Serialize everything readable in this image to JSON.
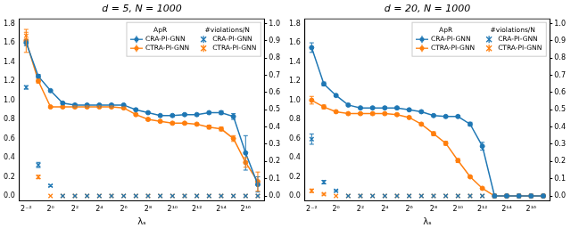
{
  "chart_data": [
    {
      "type": "line",
      "title": "d = 5, N = 1000",
      "x_label": "λₛ",
      "x": [
        0.25,
        0.5,
        1,
        2,
        4,
        8,
        16,
        32,
        64,
        128,
        256,
        512,
        1024,
        2048,
        4096,
        8192,
        16384,
        32768,
        65536,
        131072
      ],
      "log": "x",
      "grid": false,
      "legend": "upper right",
      "legend_titles": [
        "ApR",
        "#violations/N"
      ],
      "xlim": [
        0.17,
        190000
      ],
      "xticks": [
        {
          "value": 0.25,
          "label": "2⁻²"
        },
        {
          "value": 1,
          "label": "2⁰"
        },
        {
          "value": 4,
          "label": "2²"
        },
        {
          "value": 16,
          "label": "2⁴"
        },
        {
          "value": 64,
          "label": "2⁶"
        },
        {
          "value": 256,
          "label": "2⁸"
        },
        {
          "value": 1024,
          "label": "2¹⁰"
        },
        {
          "value": 4096,
          "label": "2¹²"
        },
        {
          "value": 16384,
          "label": "2¹⁴"
        },
        {
          "value": 65536,
          "label": "2¹⁶"
        }
      ],
      "ylim": [
        -0.05,
        1.85
      ],
      "yticks": [
        {
          "value": 0,
          "label": "0.0"
        },
        0.2,
        0.4,
        0.6,
        0.8,
        {
          "value": 1,
          "label": "1.0"
        },
        1.2,
        1.4,
        1.6,
        1.8
      ],
      "y2lim": [
        -0.0278,
        1.0278
      ],
      "y2ticks": [
        {
          "value": 0,
          "label": "0.0"
        },
        0.1,
        0.2,
        0.3,
        0.4,
        0.5,
        0.6,
        0.7,
        0.8,
        0.9,
        {
          "value": 1,
          "label": "1.0"
        }
      ],
      "series": [
        {
          "name": "CRA-PI-GNN",
          "color": "#1f77b4",
          "marker": "circle",
          "line_style": "solid",
          "axis": "y",
          "values": [
            1.6,
            1.25,
            1.1,
            0.97,
            0.95,
            0.95,
            0.95,
            0.95,
            0.95,
            0.9,
            0.87,
            0.84,
            0.84,
            0.85,
            0.85,
            0.87,
            0.87,
            0.83,
            0.45,
            0.12
          ],
          "errors": [
            0.03,
            0.02,
            0.01,
            0.01,
            0.01,
            0.01,
            0.01,
            0.01,
            0.01,
            0.01,
            0.01,
            0.01,
            0.01,
            0.01,
            0.01,
            0.01,
            0.02,
            0.03,
            0.18,
            0.08
          ]
        },
        {
          "name": "CTRA-PI-GNN",
          "color": "#ff7f0e",
          "marker": "circle",
          "line_style": "solid",
          "axis": "y",
          "values": [
            1.62,
            1.2,
            0.93,
            0.93,
            0.93,
            0.93,
            0.93,
            0.93,
            0.92,
            0.85,
            0.8,
            0.78,
            0.76,
            0.76,
            0.75,
            0.72,
            0.7,
            0.6,
            0.35,
            0.15
          ],
          "errors": [
            0.12,
            0.02,
            0.01,
            0.01,
            0.01,
            0.01,
            0.01,
            0.01,
            0.01,
            0.01,
            0.01,
            0.01,
            0.01,
            0.01,
            0.01,
            0.02,
            0.02,
            0.03,
            0.05,
            0.1
          ]
        },
        {
          "name": "CRA-PI-GNN",
          "color": "#1f77b4",
          "marker": "x",
          "line_style": "none",
          "axis": "y2",
          "values": [
            0.63,
            0.18,
            0.06,
            0,
            0,
            0,
            0,
            0,
            0,
            0,
            0,
            0,
            0,
            0,
            0,
            0,
            0,
            0,
            0,
            0
          ],
          "errors": [
            0.01,
            0.015,
            0.005,
            0,
            0,
            0,
            0,
            0,
            0,
            0,
            0,
            0,
            0,
            0,
            0,
            0,
            0,
            0,
            0,
            0
          ]
        },
        {
          "name": "CTRA-PI-GNN",
          "color": "#ff7f0e",
          "marker": "x",
          "line_style": "none",
          "axis": "y2",
          "values": [
            0.93,
            0.11,
            0,
            0,
            0,
            0,
            0,
            0,
            0,
            0,
            0,
            0,
            0,
            0,
            0,
            0,
            0,
            0,
            0,
            0
          ],
          "errors": [
            0.02,
            0.01,
            0,
            0,
            0,
            0,
            0,
            0,
            0,
            0,
            0,
            0,
            0,
            0,
            0,
            0,
            0,
            0,
            0,
            0
          ]
        }
      ]
    },
    {
      "type": "line",
      "title": "d = 20, N = 1000",
      "x_label": "λₛ",
      "x": [
        0.25,
        0.5,
        1,
        2,
        4,
        8,
        16,
        32,
        64,
        128,
        256,
        512,
        1024,
        2048,
        4096,
        8192,
        16384,
        32768,
        65536,
        131072
      ],
      "log": "x",
      "grid": false,
      "legend": "upper right",
      "legend_titles": [
        "ApR",
        "#violations/N"
      ],
      "xlim": [
        0.17,
        190000
      ],
      "xticks": [
        {
          "value": 0.25,
          "label": "2⁻²"
        },
        {
          "value": 1,
          "label": "2⁰"
        },
        {
          "value": 4,
          "label": "2²"
        },
        {
          "value": 16,
          "label": "2⁴"
        },
        {
          "value": 64,
          "label": "2⁶"
        },
        {
          "value": 256,
          "label": "2⁸"
        },
        {
          "value": 1024,
          "label": "2¹⁰"
        },
        {
          "value": 4096,
          "label": "2¹²"
        },
        {
          "value": 16384,
          "label": "2¹⁴"
        },
        {
          "value": 65536,
          "label": "2¹⁶"
        }
      ],
      "ylim": [
        -0.05,
        1.85
      ],
      "yticks": [
        {
          "value": 0,
          "label": "0.0"
        },
        0.2,
        0.4,
        0.6,
        0.8,
        {
          "value": 1,
          "label": "1.0"
        },
        1.2,
        1.4,
        1.6,
        1.8
      ],
      "y2lim": [
        -0.0278,
        1.0278
      ],
      "y2ticks": [
        {
          "value": 0,
          "label": "0.0"
        },
        0.1,
        0.2,
        0.3,
        0.4,
        0.5,
        0.6,
        0.7,
        0.8,
        0.9,
        {
          "value": 1,
          "label": "1.0"
        }
      ],
      "series": [
        {
          "name": "CRA-PI-GNN",
          "color": "#1f77b4",
          "marker": "circle",
          "line_style": "solid",
          "axis": "y",
          "values": [
            1.55,
            1.17,
            1.05,
            0.95,
            0.92,
            0.92,
            0.92,
            0.92,
            0.9,
            0.88,
            0.84,
            0.83,
            0.83,
            0.75,
            0.52,
            0,
            0,
            0,
            0,
            0
          ],
          "errors": [
            0.05,
            0.02,
            0.01,
            0.01,
            0.01,
            0.01,
            0.01,
            0.01,
            0.01,
            0.01,
            0.01,
            0.01,
            0.01,
            0.02,
            0.04,
            0,
            0,
            0,
            0,
            0
          ]
        },
        {
          "name": "CTRA-PI-GNN",
          "color": "#ff7f0e",
          "marker": "circle",
          "line_style": "solid",
          "axis": "y",
          "values": [
            1.0,
            0.93,
            0.88,
            0.86,
            0.86,
            0.86,
            0.86,
            0.85,
            0.82,
            0.75,
            0.65,
            0.55,
            0.37,
            0.2,
            0.08,
            0,
            0,
            0,
            0,
            0
          ],
          "errors": [
            0.04,
            0.02,
            0.01,
            0.01,
            0.01,
            0.01,
            0.01,
            0.01,
            0.01,
            0.01,
            0.02,
            0.02,
            0.02,
            0.01,
            0.01,
            0,
            0,
            0,
            0,
            0
          ]
        },
        {
          "name": "CRA-PI-GNN",
          "color": "#1f77b4",
          "marker": "x",
          "line_style": "none",
          "axis": "y2",
          "values": [
            0.33,
            0.08,
            0.03,
            0,
            0,
            0,
            0,
            0,
            0,
            0,
            0,
            0,
            0,
            0,
            0,
            0,
            0,
            0,
            0,
            0
          ],
          "errors": [
            0.03,
            0.01,
            0.005,
            0,
            0,
            0,
            0,
            0,
            0,
            0,
            0,
            0,
            0,
            0,
            0,
            0,
            0,
            0,
            0,
            0
          ]
        },
        {
          "name": "CTRA-PI-GNN",
          "color": "#ff7f0e",
          "marker": "x",
          "line_style": "none",
          "axis": "y2",
          "values": [
            0.03,
            0.01,
            0,
            0,
            0,
            0,
            0,
            0,
            0,
            0,
            0,
            0,
            0,
            0,
            0,
            0,
            0,
            0,
            0,
            0
          ],
          "errors": [
            0.01,
            0.005,
            0,
            0,
            0,
            0,
            0,
            0,
            0,
            0,
            0,
            0,
            0,
            0,
            0,
            0,
            0,
            0,
            0,
            0
          ]
        }
      ]
    }
  ]
}
